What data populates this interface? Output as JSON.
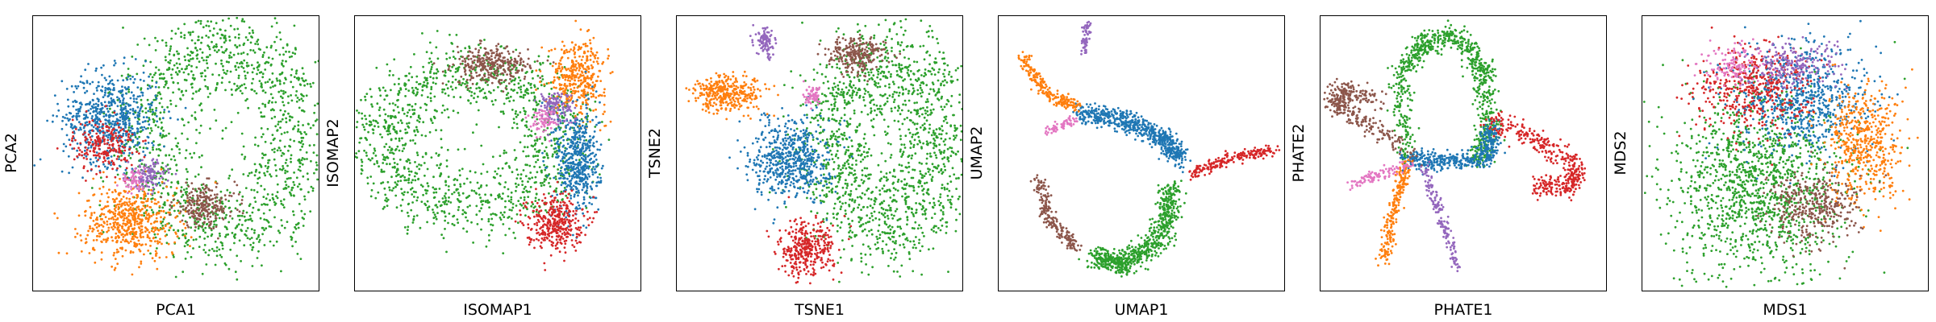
{
  "figure": {
    "colors": {
      "blue": "#1f77b4",
      "orange": "#ff7f0e",
      "green": "#2ca02c",
      "red": "#d62728",
      "purple": "#9467bd",
      "brown": "#8c564b",
      "pink": "#e377c2"
    }
  },
  "chart_data": [
    {
      "type": "scatter",
      "xlabel": "PCA1",
      "ylabel": "PCA2",
      "xticks": [],
      "yticks": [],
      "grid": false,
      "xlim": [
        0,
        1
      ],
      "ylim": [
        0,
        1
      ],
      "clusters": [
        {
          "color": "green",
          "shape": "ring",
          "cx": 0.66,
          "cy": 0.56,
          "rx": 0.27,
          "ry": 0.34,
          "width": 0.09,
          "n": 1400
        },
        {
          "color": "blue",
          "shape": "blob",
          "cx": 0.27,
          "cy": 0.63,
          "rx": 0.15,
          "ry": 0.15,
          "n": 650
        },
        {
          "color": "red",
          "shape": "blob",
          "cx": 0.25,
          "cy": 0.53,
          "rx": 0.1,
          "ry": 0.09,
          "n": 220
        },
        {
          "color": "orange",
          "shape": "blob",
          "cx": 0.34,
          "cy": 0.25,
          "rx": 0.15,
          "ry": 0.12,
          "n": 550
        },
        {
          "color": "purple",
          "shape": "blob",
          "cx": 0.4,
          "cy": 0.42,
          "rx": 0.06,
          "ry": 0.05,
          "n": 120
        },
        {
          "color": "brown",
          "shape": "blob",
          "cx": 0.6,
          "cy": 0.31,
          "rx": 0.1,
          "ry": 0.07,
          "n": 230
        },
        {
          "color": "pink",
          "shape": "blob",
          "cx": 0.35,
          "cy": 0.4,
          "rx": 0.04,
          "ry": 0.03,
          "n": 60
        }
      ]
    },
    {
      "type": "scatter",
      "xlabel": "ISOMAP1",
      "ylabel": "ISOMAP2",
      "xticks": [],
      "yticks": [],
      "grid": false,
      "xlim": [
        0,
        1
      ],
      "ylim": [
        0,
        1
      ],
      "clusters": [
        {
          "color": "green",
          "shape": "ring",
          "cx": 0.4,
          "cy": 0.55,
          "rx": 0.31,
          "ry": 0.24,
          "width": 0.08,
          "n": 1300
        },
        {
          "color": "brown",
          "shape": "blob",
          "cx": 0.48,
          "cy": 0.82,
          "rx": 0.12,
          "ry": 0.06,
          "n": 300
        },
        {
          "color": "orange",
          "shape": "blob",
          "cx": 0.78,
          "cy": 0.78,
          "rx": 0.09,
          "ry": 0.12,
          "n": 380
        },
        {
          "color": "blue",
          "shape": "blob",
          "cx": 0.78,
          "cy": 0.47,
          "rx": 0.07,
          "ry": 0.18,
          "n": 500
        },
        {
          "color": "red",
          "shape": "blob",
          "cx": 0.7,
          "cy": 0.25,
          "rx": 0.09,
          "ry": 0.09,
          "n": 350
        },
        {
          "color": "purple",
          "shape": "blob",
          "cx": 0.7,
          "cy": 0.67,
          "rx": 0.06,
          "ry": 0.06,
          "n": 120
        },
        {
          "color": "pink",
          "shape": "blob",
          "cx": 0.66,
          "cy": 0.62,
          "rx": 0.04,
          "ry": 0.04,
          "n": 70
        }
      ]
    },
    {
      "type": "scatter",
      "xlabel": "TSNE1",
      "ylabel": "TSNE2",
      "xticks": [],
      "yticks": [],
      "grid": false,
      "xlim": [
        0,
        1
      ],
      "ylim": [
        0,
        1
      ],
      "clusters": [
        {
          "color": "green",
          "shape": "ring",
          "cx": 0.74,
          "cy": 0.53,
          "rx": 0.21,
          "ry": 0.3,
          "width": 0.1,
          "n": 1500
        },
        {
          "color": "blue",
          "shape": "blob",
          "cx": 0.4,
          "cy": 0.48,
          "rx": 0.12,
          "ry": 0.13,
          "n": 600
        },
        {
          "color": "orange",
          "shape": "blob",
          "cx": 0.18,
          "cy": 0.72,
          "rx": 0.12,
          "ry": 0.06,
          "n": 350
        },
        {
          "color": "brown",
          "shape": "blob",
          "cx": 0.63,
          "cy": 0.86,
          "rx": 0.09,
          "ry": 0.06,
          "n": 250
        },
        {
          "color": "red",
          "shape": "blob",
          "cx": 0.45,
          "cy": 0.15,
          "rx": 0.09,
          "ry": 0.09,
          "n": 350
        },
        {
          "color": "purple",
          "shape": "blob",
          "cx": 0.31,
          "cy": 0.9,
          "rx": 0.03,
          "ry": 0.05,
          "n": 100
        },
        {
          "color": "pink",
          "shape": "blob",
          "cx": 0.48,
          "cy": 0.71,
          "rx": 0.03,
          "ry": 0.03,
          "n": 60
        }
      ]
    },
    {
      "type": "scatter",
      "xlabel": "UMAP1",
      "ylabel": "UMAP2",
      "xticks": [],
      "yticks": [],
      "grid": false,
      "xlim": [
        0,
        1
      ],
      "ylim": [
        0,
        1
      ],
      "clusters": [
        {
          "color": "blue",
          "shape": "line",
          "points": [
            [
              0.28,
              0.65
            ],
            [
              0.45,
              0.62
            ],
            [
              0.57,
              0.56
            ],
            [
              0.64,
              0.48
            ]
          ],
          "spread": 0.018,
          "n": 650
        },
        {
          "color": "green",
          "shape": "line",
          "points": [
            [
              0.61,
              0.38
            ],
            [
              0.57,
              0.19
            ],
            [
              0.44,
              0.1
            ],
            [
              0.34,
              0.12
            ]
          ],
          "spread": 0.02,
          "n": 700
        },
        {
          "color": "brown",
          "shape": "line",
          "points": [
            [
              0.14,
              0.4
            ],
            [
              0.18,
              0.25
            ],
            [
              0.28,
              0.15
            ]
          ],
          "spread": 0.012,
          "n": 200
        },
        {
          "color": "orange",
          "shape": "line",
          "points": [
            [
              0.08,
              0.85
            ],
            [
              0.17,
              0.72
            ],
            [
              0.27,
              0.67
            ]
          ],
          "spread": 0.012,
          "n": 220
        },
        {
          "color": "red",
          "shape": "line",
          "points": [
            [
              0.67,
              0.42
            ],
            [
              0.8,
              0.48
            ],
            [
              0.96,
              0.51
            ]
          ],
          "spread": 0.01,
          "n": 200
        },
        {
          "color": "purple",
          "shape": "line",
          "points": [
            [
              0.31,
              0.98
            ],
            [
              0.3,
              0.86
            ]
          ],
          "spread": 0.006,
          "n": 60
        },
        {
          "color": "pink",
          "shape": "line",
          "points": [
            [
              0.16,
              0.58
            ],
            [
              0.22,
              0.6
            ],
            [
              0.27,
              0.62
            ]
          ],
          "spread": 0.008,
          "n": 60
        }
      ]
    },
    {
      "type": "scatter",
      "xlabel": "PHATE1",
      "ylabel": "PHATE2",
      "xticks": [],
      "yticks": [],
      "grid": false,
      "xlim": [
        0,
        1
      ],
      "ylim": [
        0,
        1
      ],
      "clusters": [
        {
          "color": "green",
          "shape": "line",
          "points": [
            [
              0.3,
              0.48
            ],
            [
              0.28,
              0.78
            ],
            [
              0.36,
              0.9
            ],
            [
              0.48,
              0.93
            ],
            [
              0.57,
              0.8
            ],
            [
              0.59,
              0.58
            ],
            [
              0.55,
              0.47
            ]
          ],
          "spread": 0.02,
          "n": 800
        },
        {
          "color": "blue",
          "shape": "line",
          "points": [
            [
              0.3,
              0.48
            ],
            [
              0.43,
              0.47
            ],
            [
              0.58,
              0.48
            ],
            [
              0.6,
              0.6
            ]
          ],
          "spread": 0.018,
          "n": 450
        },
        {
          "color": "brown",
          "shape": "line",
          "points": [
            [
              0.32,
              0.5
            ],
            [
              0.15,
              0.62
            ],
            [
              0.05,
              0.68
            ],
            [
              0.07,
              0.73
            ],
            [
              0.2,
              0.7
            ]
          ],
          "spread": 0.02,
          "n": 350
        },
        {
          "color": "red",
          "shape": "line",
          "points": [
            [
              0.6,
              0.62
            ],
            [
              0.75,
              0.55
            ],
            [
              0.9,
              0.45
            ],
            [
              0.87,
              0.37
            ],
            [
              0.75,
              0.38
            ]
          ],
          "spread": 0.02,
          "n": 400
        },
        {
          "color": "orange",
          "shape": "line",
          "points": [
            [
              0.3,
              0.46
            ],
            [
              0.26,
              0.3
            ],
            [
              0.22,
              0.1
            ]
          ],
          "spread": 0.012,
          "n": 220
        },
        {
          "color": "purple",
          "shape": "line",
          "points": [
            [
              0.36,
              0.45
            ],
            [
              0.42,
              0.28
            ],
            [
              0.48,
              0.08
            ]
          ],
          "spread": 0.01,
          "n": 160
        },
        {
          "color": "pink",
          "shape": "line",
          "points": [
            [
              0.32,
              0.46
            ],
            [
              0.2,
              0.42
            ],
            [
              0.11,
              0.39
            ]
          ],
          "spread": 0.01,
          "n": 100
        }
      ]
    },
    {
      "type": "scatter",
      "xlabel": "MDS1",
      "ylabel": "MDS2",
      "xticks": [],
      "yticks": [],
      "grid": false,
      "xlim": [
        0,
        1
      ],
      "ylim": [
        0,
        1
      ],
      "clusters": [
        {
          "color": "green",
          "shape": "blob",
          "cx": 0.4,
          "cy": 0.38,
          "rx": 0.28,
          "ry": 0.3,
          "n": 1300
        },
        {
          "color": "blue",
          "shape": "blob",
          "cx": 0.55,
          "cy": 0.7,
          "rx": 0.22,
          "ry": 0.18,
          "n": 700
        },
        {
          "color": "orange",
          "shape": "blob",
          "cx": 0.78,
          "cy": 0.53,
          "rx": 0.12,
          "ry": 0.2,
          "n": 500
        },
        {
          "color": "red",
          "shape": "blob",
          "cx": 0.38,
          "cy": 0.73,
          "rx": 0.18,
          "ry": 0.14,
          "n": 450
        },
        {
          "color": "brown",
          "shape": "blob",
          "cx": 0.6,
          "cy": 0.3,
          "rx": 0.14,
          "ry": 0.12,
          "n": 350
        },
        {
          "color": "purple",
          "shape": "blob",
          "cx": 0.52,
          "cy": 0.82,
          "rx": 0.14,
          "ry": 0.08,
          "n": 200
        },
        {
          "color": "pink",
          "shape": "blob",
          "cx": 0.32,
          "cy": 0.82,
          "rx": 0.1,
          "ry": 0.07,
          "n": 120
        }
      ]
    }
  ]
}
